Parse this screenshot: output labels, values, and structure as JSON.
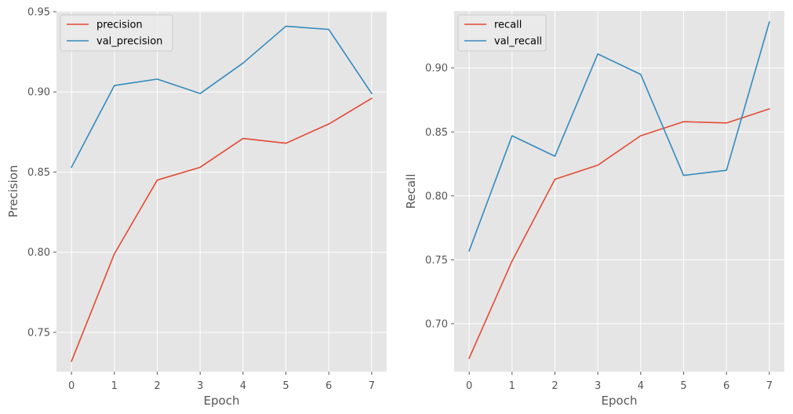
{
  "style": {
    "axes_background": "#E5E5E5",
    "grid_color": "#FFFFFF",
    "tick_color": "#555555",
    "legend_background": "#EBEBEB",
    "legend_border": "#CCCCCC"
  },
  "chart_data": [
    {
      "type": "line",
      "title": "",
      "xlabel": "Epoch",
      "ylabel": "Precision",
      "xlim": [
        -0.35,
        7.35
      ],
      "ylim": [
        0.7255,
        0.9505
      ],
      "xticks": [
        0,
        1,
        2,
        3,
        4,
        5,
        6,
        7
      ],
      "xtick_labels": [
        "0",
        "1",
        "2",
        "3",
        "4",
        "5",
        "6",
        "7"
      ],
      "yticks": [
        0.75,
        0.8,
        0.85,
        0.9,
        0.95
      ],
      "ytick_labels": [
        "0.75",
        "0.80",
        "0.85",
        "0.90",
        "0.95"
      ],
      "grid": true,
      "legend_position": "top-left",
      "x": [
        0,
        1,
        2,
        3,
        4,
        5,
        6,
        7
      ],
      "series": [
        {
          "name": "precision",
          "color": "#E24A33",
          "values": [
            0.732,
            0.799,
            0.845,
            0.853,
            0.871,
            0.868,
            0.88,
            0.896
          ]
        },
        {
          "name": "val_precision",
          "color": "#348ABD",
          "values": [
            0.853,
            0.904,
            0.908,
            0.899,
            0.918,
            0.941,
            0.939,
            0.899
          ]
        }
      ]
    },
    {
      "type": "line",
      "title": "",
      "xlabel": "Epoch",
      "ylabel": "Recall",
      "xlim": [
        -0.35,
        7.35
      ],
      "ylim": [
        0.6625,
        0.9446
      ],
      "xticks": [
        0,
        1,
        2,
        3,
        4,
        5,
        6,
        7
      ],
      "xtick_labels": [
        "0",
        "1",
        "2",
        "3",
        "4",
        "5",
        "6",
        "7"
      ],
      "yticks": [
        0.7,
        0.75,
        0.8,
        0.85,
        0.9
      ],
      "ytick_labels": [
        "0.70",
        "0.75",
        "0.80",
        "0.85",
        "0.90"
      ],
      "grid": true,
      "legend_position": "top-left",
      "x": [
        0,
        1,
        2,
        3,
        4,
        5,
        6,
        7
      ],
      "series": [
        {
          "name": "recall",
          "color": "#E24A33",
          "values": [
            0.673,
            0.749,
            0.813,
            0.824,
            0.847,
            0.858,
            0.857,
            0.868
          ]
        },
        {
          "name": "val_recall",
          "color": "#348ABD",
          "values": [
            0.757,
            0.847,
            0.831,
            0.911,
            0.895,
            0.816,
            0.82,
            0.936
          ]
        }
      ]
    }
  ]
}
